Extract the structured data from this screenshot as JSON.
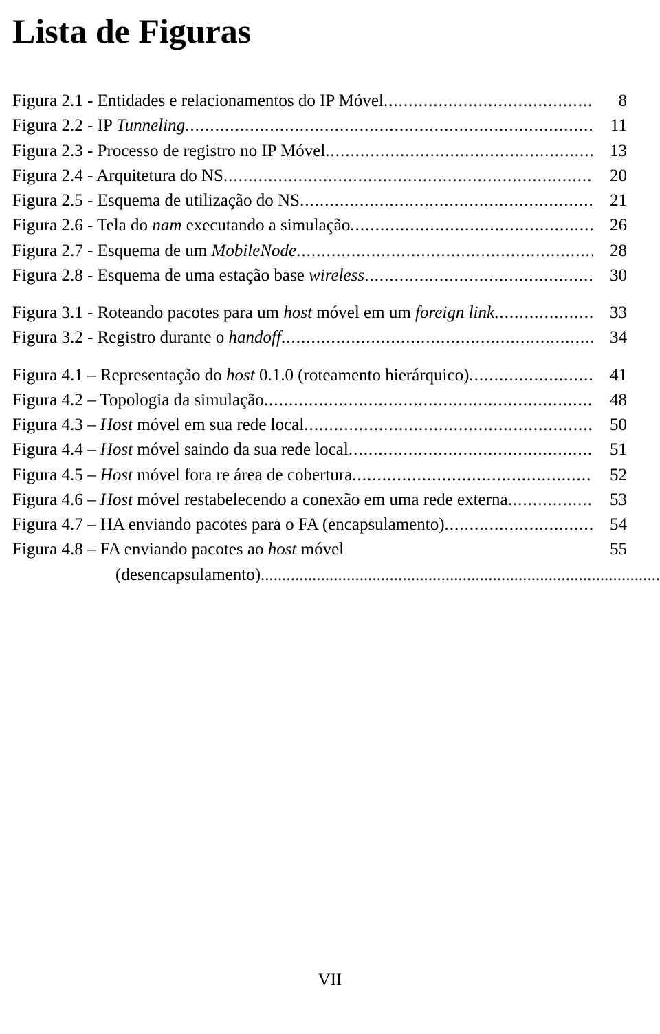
{
  "title": "Lista de Figuras",
  "footer": "VII",
  "fonts": {
    "family": "Times New Roman",
    "title_size_pt": 38,
    "body_size_pt": 19
  },
  "colors": {
    "text": "#000000",
    "background": "#ffffff"
  },
  "groups": [
    {
      "entries": [
        {
          "prefix": "Figura 2.1 - Entidades e relacionamentos do IP Móvel",
          "italic_tail": "",
          "page": "8"
        },
        {
          "prefix": "Figura 2.2 - IP ",
          "italic_tail": "Tunneling",
          "page": "11"
        },
        {
          "prefix": "Figura 2.3 - Processo de registro no IP Móvel",
          "italic_tail": "",
          "page": "13"
        },
        {
          "prefix": "Figura 2.4 - Arquitetura do NS",
          "italic_tail": "",
          "page": "20"
        },
        {
          "prefix": "Figura 2.5 - Esquema de utilização do NS",
          "italic_tail": "",
          "page": "21"
        },
        {
          "prefix": "Figura 2.6 - Tela do ",
          "italic_tail": "nam",
          "suffix": " executando a simulação",
          "page": "26"
        },
        {
          "prefix": "Figura 2.7 - Esquema de um ",
          "italic_tail": "MobileNode",
          "page": "28"
        },
        {
          "prefix": "Figura 2.8 - Esquema de uma estação base ",
          "italic_tail": "wireless",
          "page": "30"
        }
      ]
    },
    {
      "entries": [
        {
          "prefix": "Figura 3.1 - Roteando pacotes para um ",
          "italic_tail": "host",
          "suffix_plain": " móvel",
          "suffix": " em um ",
          "italic_tail2": "foreign link",
          "page": "33"
        },
        {
          "prefix": "Figura 3.2 - Registro durante o ",
          "italic_tail": "handoff",
          "page": "34"
        }
      ]
    },
    {
      "entries": [
        {
          "prefix": "Figura 4.1 – Representação do ",
          "italic_tail": "host",
          "suffix": " 0.1.0 (roteamento hierárquico)",
          "page": "41"
        },
        {
          "prefix": "Figura 4.2 – Topologia da simulação",
          "italic_tail": "",
          "page": "48"
        },
        {
          "prefix": "Figura 4.3 – ",
          "italic_tail": "Host",
          "suffix": " móvel em sua rede local",
          "page": "50"
        },
        {
          "prefix": "Figura 4.4 – ",
          "italic_tail": "Host",
          "suffix": " móvel saindo da sua rede local",
          "page": "51"
        },
        {
          "prefix": "Figura 4.5 – ",
          "italic_tail": "Host",
          "suffix": " móvel fora re área de cobertura",
          "page": "52"
        },
        {
          "prefix": "Figura 4.6 – ",
          "italic_tail": "Host",
          "suffix": " móvel restabelecendo a conexão em uma rede externa",
          "page": "53"
        },
        {
          "prefix": "Figura 4.7 –  HA enviando pacotes para o FA (encapsulamento)",
          "italic_tail": "",
          "page": "54"
        },
        {
          "prefix": "Figura 4.8 –  FA enviando pacotes ao ",
          "italic_tail": "host",
          "suffix": " móvel",
          "wrap_suffix": "(desencapsulamento)",
          "page": "55"
        }
      ]
    }
  ]
}
